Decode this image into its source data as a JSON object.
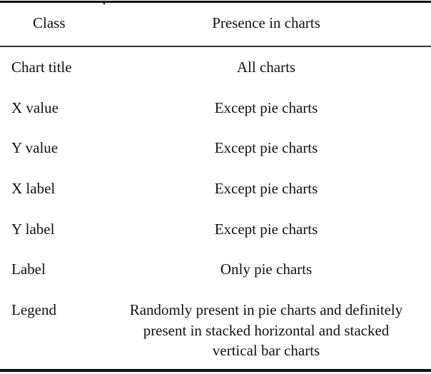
{
  "table": {
    "headers": [
      "Class",
      "Presence in charts"
    ],
    "rows": [
      {
        "class": "Chart title",
        "presence": "All charts"
      },
      {
        "class": "X value",
        "presence": "Except pie charts"
      },
      {
        "class": "Y value",
        "presence": "Except pie charts"
      },
      {
        "class": "X label",
        "presence": "Except pie charts"
      },
      {
        "class": "Y label",
        "presence": "Except pie charts"
      },
      {
        "class": "Label",
        "presence": "Only pie charts"
      },
      {
        "class": "Legend",
        "presence": "Randomly present in pie charts and definitely present in stacked horizontal and stacked vertical bar charts"
      }
    ]
  }
}
